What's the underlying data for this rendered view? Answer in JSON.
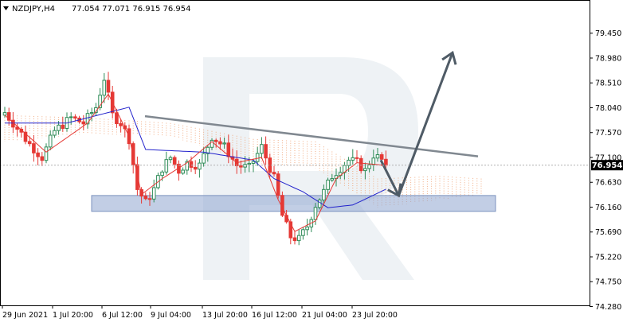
{
  "header": {
    "symbol_label": "NZDJPY,H4",
    "ohlc_label": "77.054 77.071 76.915 76.954",
    "menu_icon": "triangle-down-icon"
  },
  "chart_data": {
    "type": "candlestick",
    "symbol": "NZDJPY",
    "timeframe": "H4",
    "ylim": [
      74.28,
      79.8
    ],
    "y_ticks": [
      "79.450",
      "78.980",
      "78.510",
      "78.040",
      "77.570",
      "77.100",
      "76.630",
      "76.160",
      "75.690",
      "75.220",
      "74.750",
      "74.280"
    ],
    "x_ticks": [
      "29 Jun 2021",
      "1 Jul 20:00",
      "6 Jul 12:00",
      "9 Jul 04:00",
      "13 Jul 20:00",
      "16 Jul 12:00",
      "21 Jul 04:00",
      "23 Jul 20:00"
    ],
    "current_price": "76.954",
    "close_anchors": [
      [
        0,
        77.95
      ],
      [
        6,
        77.35
      ],
      [
        9,
        77.1
      ],
      [
        12,
        77.6
      ],
      [
        16,
        77.85
      ],
      [
        19,
        77.75
      ],
      [
        22,
        78.05
      ],
      [
        24,
        78.6
      ],
      [
        26,
        77.9
      ],
      [
        28,
        77.75
      ],
      [
        30,
        77.45
      ],
      [
        32,
        76.5
      ],
      [
        34,
        76.25
      ],
      [
        36,
        76.5
      ],
      [
        38,
        76.9
      ],
      [
        40,
        77.1
      ],
      [
        42,
        76.85
      ],
      [
        44,
        77.0
      ],
      [
        47,
        76.95
      ],
      [
        50,
        77.5
      ],
      [
        53,
        77.3
      ],
      [
        56,
        76.95
      ],
      [
        59,
        76.9
      ],
      [
        62,
        77.3
      ],
      [
        65,
        76.7
      ],
      [
        67,
        76.0
      ],
      [
        69,
        75.6
      ],
      [
        71,
        75.55
      ],
      [
        73,
        75.8
      ],
      [
        75,
        76.2
      ],
      [
        77,
        76.45
      ],
      [
        79,
        76.75
      ],
      [
        81,
        76.9
      ],
      [
        83,
        77.05
      ],
      [
        85,
        77.0
      ],
      [
        87,
        76.85
      ],
      [
        89,
        77.15
      ],
      [
        91,
        77.05
      ],
      [
        92,
        76.95
      ]
    ],
    "support_zone": [
      76.08,
      76.38
    ],
    "trendline": {
      "start": [
        0.0,
        77.88
      ],
      "end": [
        1.0,
        77.12
      ]
    },
    "forecast_path": [
      [
        0.0,
        77.05
      ],
      [
        0.25,
        76.38
      ],
      [
        1.0,
        79.08
      ]
    ],
    "kijun_anchors": [
      [
        0,
        77.75
      ],
      [
        15,
        77.75
      ],
      [
        30,
        78.05
      ],
      [
        34,
        77.25
      ],
      [
        48,
        77.2
      ],
      [
        60,
        77.05
      ],
      [
        65,
        76.7
      ],
      [
        72,
        76.45
      ],
      [
        78,
        76.15
      ],
      [
        84,
        76.2
      ],
      [
        92,
        76.5
      ]
    ],
    "tenkan_anchors": [
      [
        0,
        77.9
      ],
      [
        10,
        77.2
      ],
      [
        20,
        77.75
      ],
      [
        25,
        78.3
      ],
      [
        30,
        77.5
      ],
      [
        33,
        76.4
      ],
      [
        38,
        76.7
      ],
      [
        44,
        77.0
      ],
      [
        50,
        77.4
      ],
      [
        56,
        77.0
      ],
      [
        62,
        77.1
      ],
      [
        66,
        76.3
      ],
      [
        70,
        75.7
      ],
      [
        75,
        75.9
      ],
      [
        80,
        76.7
      ],
      [
        85,
        77.0
      ],
      [
        92,
        76.95
      ]
    ],
    "cloud_anchors": [
      [
        0,
        77.9,
        77.4
      ],
      [
        20,
        77.85,
        77.55
      ],
      [
        40,
        77.75,
        77.5
      ],
      [
        60,
        77.45,
        77.0
      ],
      [
        75,
        77.4,
        76.9
      ],
      [
        90,
        76.7,
        76.15
      ],
      [
        105,
        76.75,
        76.3
      ],
      [
        115,
        76.7,
        76.4
      ]
    ],
    "colors": {
      "bull": "#2e8b57",
      "bear": "#e53935",
      "tenkan": "#e53935",
      "kijun": "#2222cc",
      "cloud": "#f0a070",
      "zone_fill": "#8fa5cf",
      "trendline": "#808890",
      "forecast": "#4f5b66",
      "price_tag_bg": "#000000",
      "price_tag_text": "#ffffff"
    }
  }
}
